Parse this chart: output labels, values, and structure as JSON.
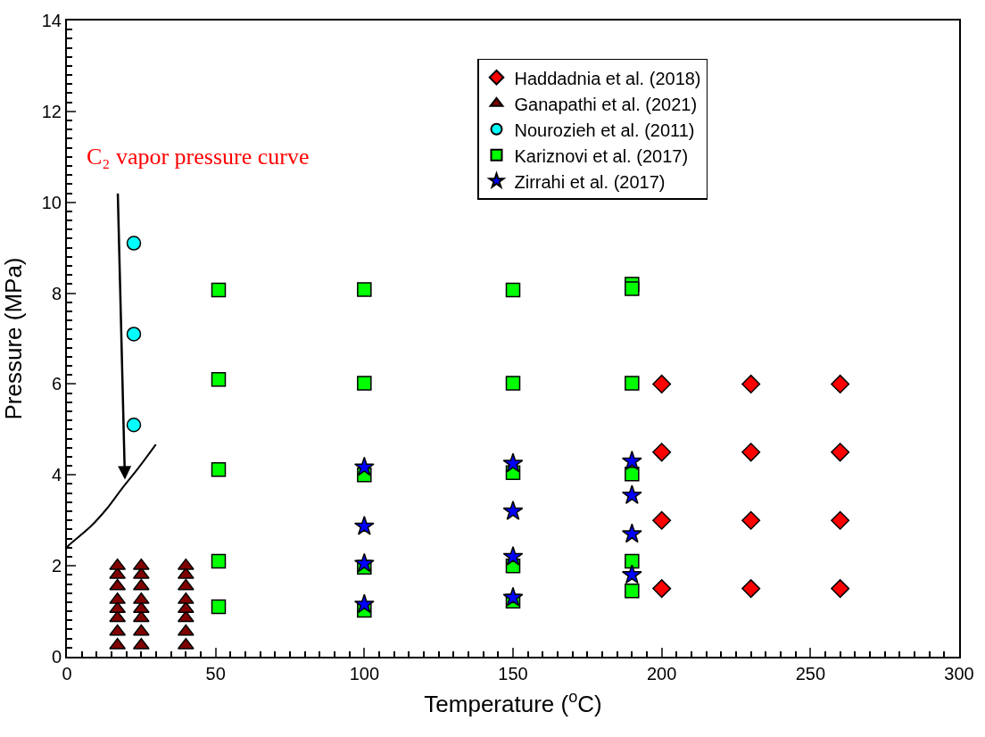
{
  "chart_data": {
    "type": "scatter",
    "xlabel": "Temperature ($^{o}$C)",
    "ylabel": "Pressure (MPa)",
    "xlim": [
      0,
      300
    ],
    "xticks": [
      0,
      50,
      100,
      150,
      200,
      250,
      300
    ],
    "ylim": [
      0,
      14
    ],
    "yticks": [
      0,
      2,
      4,
      6,
      8,
      10,
      12,
      14
    ],
    "legend": "top right",
    "series": [
      {
        "name": "Haddadnia et al. (2018)",
        "color": "#ff0000",
        "marker": "diamond",
        "x": [
          200,
          200,
          200,
          200,
          230,
          230,
          230,
          230,
          260,
          260,
          260,
          260
        ],
        "values": [
          6,
          4.5,
          3,
          1.5,
          6,
          4.5,
          3,
          1.5,
          6,
          4.5,
          3,
          1.5
        ]
      },
      {
        "name": "Ganapathi et al. (2021)",
        "color": "#800000",
        "marker": "triangle",
        "x": [
          17,
          17,
          17,
          17,
          17,
          17,
          17,
          17,
          25,
          25,
          25,
          25,
          25,
          25,
          25,
          25,
          40,
          40,
          40,
          40,
          40,
          40,
          40,
          40
        ],
        "values": [
          0.25,
          0.55,
          0.85,
          1.05,
          1.25,
          1.55,
          1.8,
          2.0,
          0.25,
          0.55,
          0.85,
          1.05,
          1.25,
          1.55,
          1.8,
          2.0,
          0.25,
          0.55,
          0.85,
          1.05,
          1.25,
          1.55,
          1.8,
          2.0
        ]
      },
      {
        "name": "Nourozieh et al. (2011)",
        "color": "#00ffff",
        "marker": "circle",
        "x": [
          22.5,
          22.5,
          22.5
        ],
        "values": [
          9.1,
          7.1,
          5.1
        ]
      },
      {
        "name": "Kariznovi et al. (2017)",
        "color": "#00ff00",
        "marker": "square",
        "x": [
          51,
          51,
          51,
          51,
          51,
          100,
          100,
          100,
          100,
          100,
          150,
          150,
          150,
          150,
          150,
          190,
          190,
          190,
          190,
          190,
          190
        ],
        "values": [
          8.07,
          6.1,
          4.12,
          2.1,
          1.1,
          8.08,
          6.02,
          4.0,
          1.97,
          1.02,
          8.07,
          6.02,
          4.05,
          2.0,
          1.22,
          8.2,
          8.1,
          6.02,
          4.02,
          2.1,
          1.45
        ]
      },
      {
        "name": "Zirrahi et al. (2017)",
        "color": "#0000ff",
        "marker": "star",
        "x": [
          100,
          100,
          100,
          100,
          150,
          150,
          150,
          150,
          190,
          190,
          190,
          190
        ],
        "values": [
          4.17,
          2.87,
          2.05,
          1.15,
          4.25,
          3.2,
          2.2,
          1.3,
          4.3,
          3.55,
          2.7,
          1.8
        ]
      },
      {
        "type": "line",
        "color": "#000000",
        "marker": "none",
        "x": [
          0,
          0.6,
          7.9,
          13.2,
          18.4,
          24,
          29.9
        ],
        "values": [
          2.4,
          2.45,
          2.86,
          3.24,
          3.69,
          4.15,
          4.67
        ]
      }
    ],
    "annotations": [
      {
        "text": "C₂ vapor pressure curve",
        "x": 19.5,
        "y": 3.9
      }
    ]
  }
}
